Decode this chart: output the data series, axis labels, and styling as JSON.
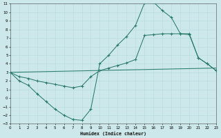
{
  "xlabel": "Humidex (Indice chaleur)",
  "xlim": [
    0,
    23
  ],
  "ylim": [
    -3,
    11
  ],
  "xticks": [
    0,
    1,
    2,
    3,
    4,
    5,
    6,
    7,
    8,
    9,
    10,
    11,
    12,
    13,
    14,
    15,
    16,
    17,
    18,
    19,
    20,
    21,
    22,
    23
  ],
  "yticks": [
    -3,
    -2,
    -1,
    0,
    1,
    2,
    3,
    4,
    5,
    6,
    7,
    8,
    9,
    10,
    11
  ],
  "bg_color": "#cce8ea",
  "grid_color": "#b0d8dc",
  "line_color": "#2a7a6a",
  "curve1_x": [
    0,
    1,
    2,
    3,
    4,
    5,
    6,
    7,
    8,
    9,
    10,
    11,
    12,
    13,
    14,
    15,
    16,
    17,
    18,
    19,
    20,
    21,
    22,
    23
  ],
  "curve1_y": [
    3.0,
    2.0,
    1.5,
    0.5,
    -0.4,
    -1.3,
    -2.0,
    -2.5,
    -2.6,
    -1.3,
    4.0,
    5.0,
    6.2,
    7.2,
    8.5,
    11.1,
    11.2,
    10.2,
    9.4,
    7.5,
    7.5,
    4.7,
    4.0,
    3.2
  ],
  "curve2_x": [
    0,
    1,
    2,
    3,
    4,
    5,
    6,
    7,
    8,
    9,
    10,
    11,
    12,
    13,
    14,
    15,
    16,
    17,
    18,
    19,
    20,
    21,
    22,
    23
  ],
  "curve2_y": [
    3.0,
    2.5,
    2.3,
    2.0,
    1.8,
    1.6,
    1.4,
    1.2,
    1.4,
    2.5,
    3.2,
    3.5,
    3.8,
    4.1,
    4.5,
    7.3,
    7.4,
    7.5,
    7.5,
    7.5,
    7.4,
    4.7,
    4.0,
    3.2
  ],
  "line3_x": [
    0,
    23
  ],
  "line3_y": [
    3.0,
    3.5
  ],
  "marker_x": [
    0,
    1,
    2,
    3,
    4,
    5,
    6,
    7,
    8,
    9,
    10,
    11,
    12,
    13,
    14,
    15,
    16,
    17,
    18,
    19,
    20,
    21,
    22,
    23
  ]
}
